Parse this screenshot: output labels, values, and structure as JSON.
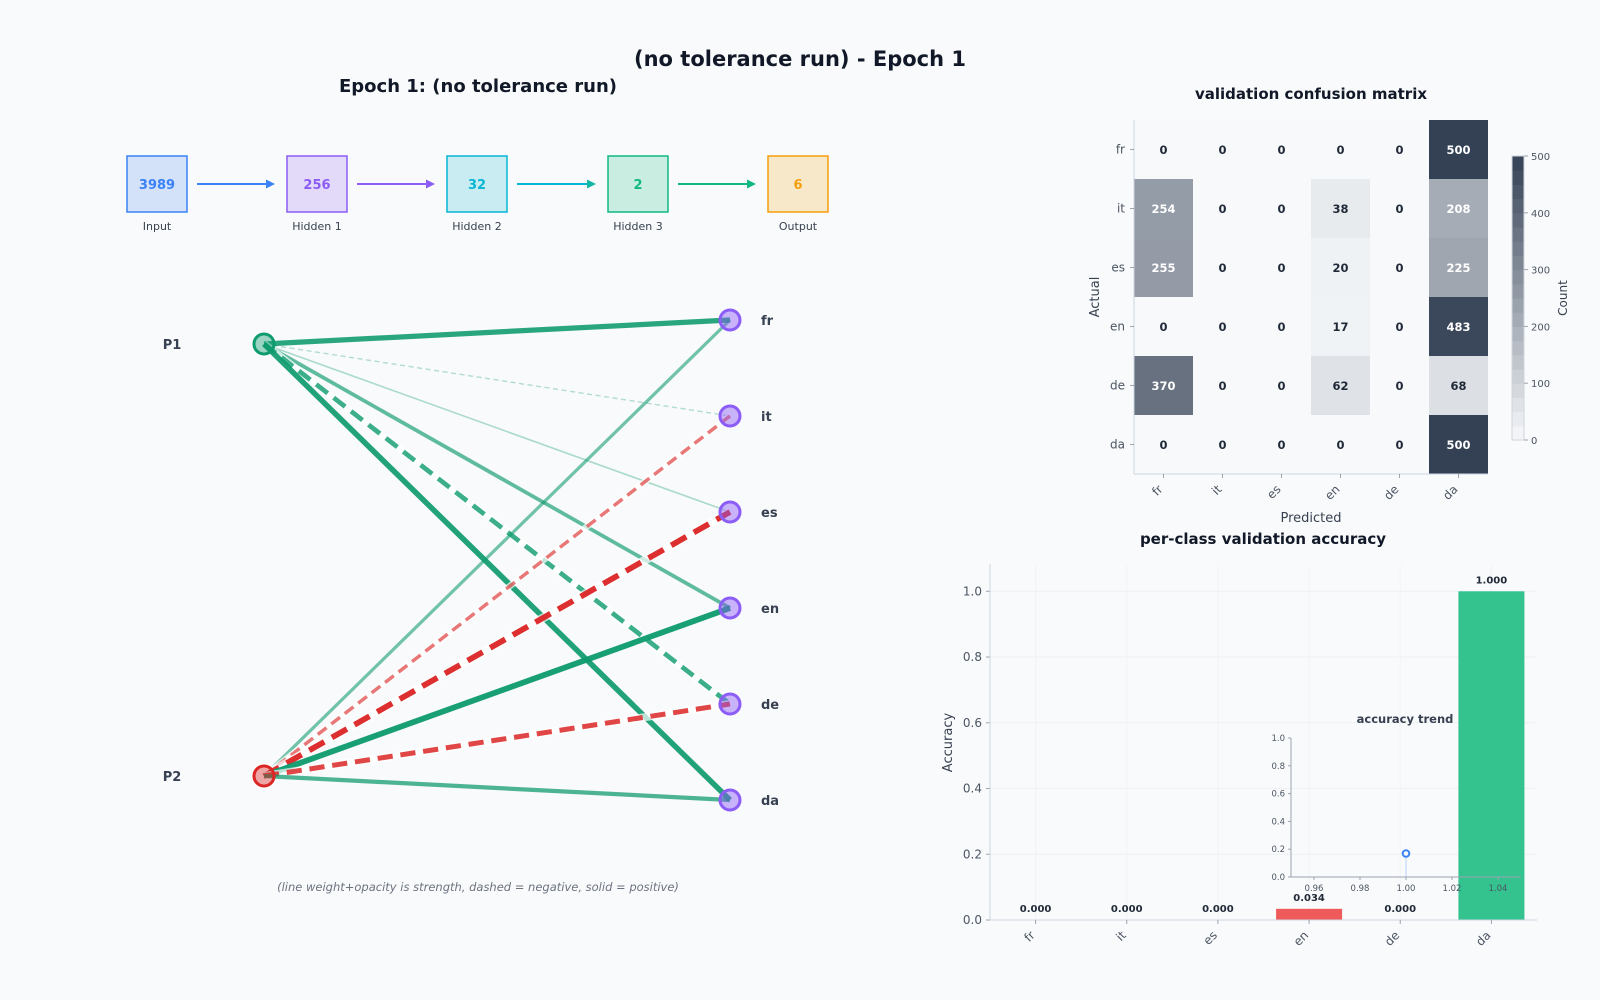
{
  "page": {
    "title": "(no tolerance run) - Epoch 1"
  },
  "network": {
    "title": "Epoch 1: (no tolerance run)",
    "caption": "(line weight+opacity is strength, dashed = negative, solid = positive)",
    "layers": [
      {
        "label": "Input",
        "size": "3989",
        "color": "#3b82f6"
      },
      {
        "label": "Hidden 1",
        "size": "256",
        "color": "#8b5cf6"
      },
      {
        "label": "Hidden 2",
        "size": "32",
        "color": "#06b6d4"
      },
      {
        "label": "Hidden 3",
        "size": "2",
        "color": "#10b981"
      },
      {
        "label": "Output",
        "size": "6",
        "color": "#f59e0b"
      }
    ],
    "inputs": [
      "P1",
      "P2"
    ],
    "outputs": [
      "fr",
      "it",
      "es",
      "en",
      "de",
      "da"
    ],
    "colors": {
      "positive": "#0f9b6e",
      "negative": "#dc2626",
      "output_node": "#8b5cf6"
    },
    "edges": [
      {
        "from": 0,
        "to": 0,
        "weight": 0.85
      },
      {
        "from": 0,
        "to": 1,
        "weight": -0.08
      },
      {
        "from": 0,
        "to": 2,
        "weight": 0.12
      },
      {
        "from": 0,
        "to": 3,
        "weight": 0.55
      },
      {
        "from": 0,
        "to": 4,
        "weight": -0.75
      },
      {
        "from": 0,
        "to": 5,
        "weight": 0.9
      },
      {
        "from": 1,
        "to": 0,
        "weight": 0.45
      },
      {
        "from": 1,
        "to": 1,
        "weight": -0.5
      },
      {
        "from": 1,
        "to": 2,
        "weight": -0.95
      },
      {
        "from": 1,
        "to": 3,
        "weight": 0.95
      },
      {
        "from": 1,
        "to": 4,
        "weight": -0.8
      },
      {
        "from": 1,
        "to": 5,
        "weight": 0.65
      }
    ]
  },
  "chart_data": [
    {
      "type": "heatmap",
      "title": "validation confusion matrix",
      "xlabel": "Predicted",
      "ylabel": "Actual",
      "row_labels": [
        "fr",
        "it",
        "es",
        "en",
        "de",
        "da"
      ],
      "col_labels": [
        "fr",
        "it",
        "es",
        "en",
        "de",
        "da"
      ],
      "values": [
        [
          0,
          0,
          0,
          0,
          0,
          500
        ],
        [
          254,
          0,
          0,
          38,
          0,
          208
        ],
        [
          255,
          0,
          0,
          20,
          0,
          225
        ],
        [
          0,
          0,
          0,
          17,
          0,
          483
        ],
        [
          370,
          0,
          0,
          62,
          0,
          68
        ],
        [
          0,
          0,
          0,
          0,
          0,
          500
        ]
      ],
      "colorbar": {
        "label": "Count",
        "min": 0,
        "max": 500,
        "ticks": [
          0,
          100,
          200,
          300,
          400,
          500
        ]
      }
    },
    {
      "type": "bar",
      "title": "per-class validation accuracy",
      "ylabel": "Accuracy",
      "categories": [
        "fr",
        "it",
        "es",
        "en",
        "de",
        "da"
      ],
      "values": [
        0.0,
        0.0,
        0.0,
        0.034,
        0.0,
        1.0
      ],
      "labels": [
        "0.000",
        "0.000",
        "0.000",
        "0.034",
        "0.000",
        "1.000"
      ],
      "ylim": [
        0,
        1.08
      ],
      "yticks": [
        0.0,
        0.2,
        0.4,
        0.6,
        0.8,
        1.0
      ],
      "ytick_labels": [
        "0.0",
        "0.2",
        "0.4",
        "0.6",
        "0.8",
        "1.0"
      ],
      "colors": {
        "high": "#34c38f",
        "low": "#ef5b5b"
      }
    },
    {
      "type": "line",
      "title": "accuracy trend",
      "x": [
        1.0
      ],
      "y": [
        0.169
      ],
      "xlim": [
        0.95,
        1.05
      ],
      "ylim": [
        0,
        1.0
      ],
      "xticks": [
        0.96,
        0.98,
        1.0,
        1.02,
        1.04
      ],
      "xtick_labels": [
        "0.96",
        "0.98",
        "1.00",
        "1.02",
        "1.04"
      ],
      "yticks": [
        0,
        0.2,
        0.4,
        0.6,
        0.8,
        1.0
      ],
      "ytick_labels": [
        "0.0",
        "0.2",
        "0.4",
        "0.6",
        "0.8",
        "1.0"
      ],
      "color": "#3b82f6"
    }
  ]
}
